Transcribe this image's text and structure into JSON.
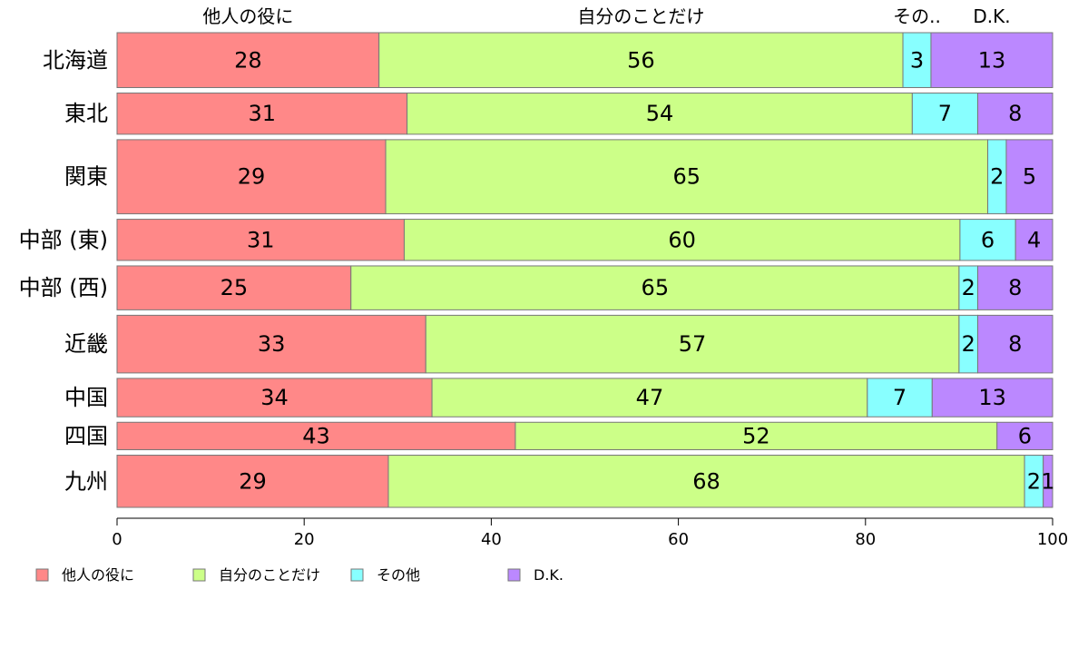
{
  "chart_data": {
    "type": "bar",
    "orientation": "horizontal",
    "stacked": true,
    "categories": [
      "北海道",
      "東北",
      "関東",
      "中部 (東)",
      "中部 (西)",
      "近畿",
      "中国",
      "四国",
      "九州"
    ],
    "category_weights": [
      1.0,
      0.75,
      1.35,
      0.75,
      0.8,
      1.05,
      0.7,
      0.5,
      0.95
    ],
    "series": [
      {
        "name": "他人の役に",
        "color": "#ff8888",
        "values": [
          28,
          31,
          29,
          31,
          25,
          33,
          34,
          43,
          29
        ]
      },
      {
        "name": "自分のことだけ",
        "color": "#ccff88",
        "values": [
          56,
          54,
          65,
          60,
          65,
          57,
          47,
          52,
          68
        ]
      },
      {
        "name": "その他",
        "color": "#88ffff",
        "values": [
          3,
          7,
          2,
          6,
          2,
          2,
          7,
          0,
          2
        ]
      },
      {
        "name": "D.K.",
        "color": "#bb88ff",
        "values": [
          13,
          8,
          5,
          4,
          8,
          8,
          13,
          6,
          1
        ]
      }
    ],
    "segment_labels": [
      [
        "28",
        "56",
        "3",
        "13"
      ],
      [
        "31",
        "54",
        "7",
        "8"
      ],
      [
        "29",
        "65",
        "2",
        "5"
      ],
      [
        "31",
        "60",
        "6",
        "4"
      ],
      [
        "25",
        "65",
        "2",
        "8"
      ],
      [
        "33",
        "57",
        "2",
        "8"
      ],
      [
        "34",
        "47",
        "7",
        "13"
      ],
      [
        "43",
        "52",
        "",
        "6"
      ],
      [
        "29",
        "68",
        "2",
        "1"
      ]
    ],
    "top_labels": [
      "他人の役に",
      "自分のことだけ",
      "その..",
      "D.K."
    ],
    "xlim": [
      0,
      100
    ],
    "xticks": [
      "0",
      "20",
      "40",
      "60",
      "80",
      "100"
    ],
    "xtick_values": [
      0,
      20,
      40,
      60,
      80,
      100
    ],
    "legend": {
      "position": "bottom",
      "entries": [
        "他人の役に",
        "自分のことだけ",
        "その他",
        "D.K."
      ]
    },
    "grid": false
  }
}
